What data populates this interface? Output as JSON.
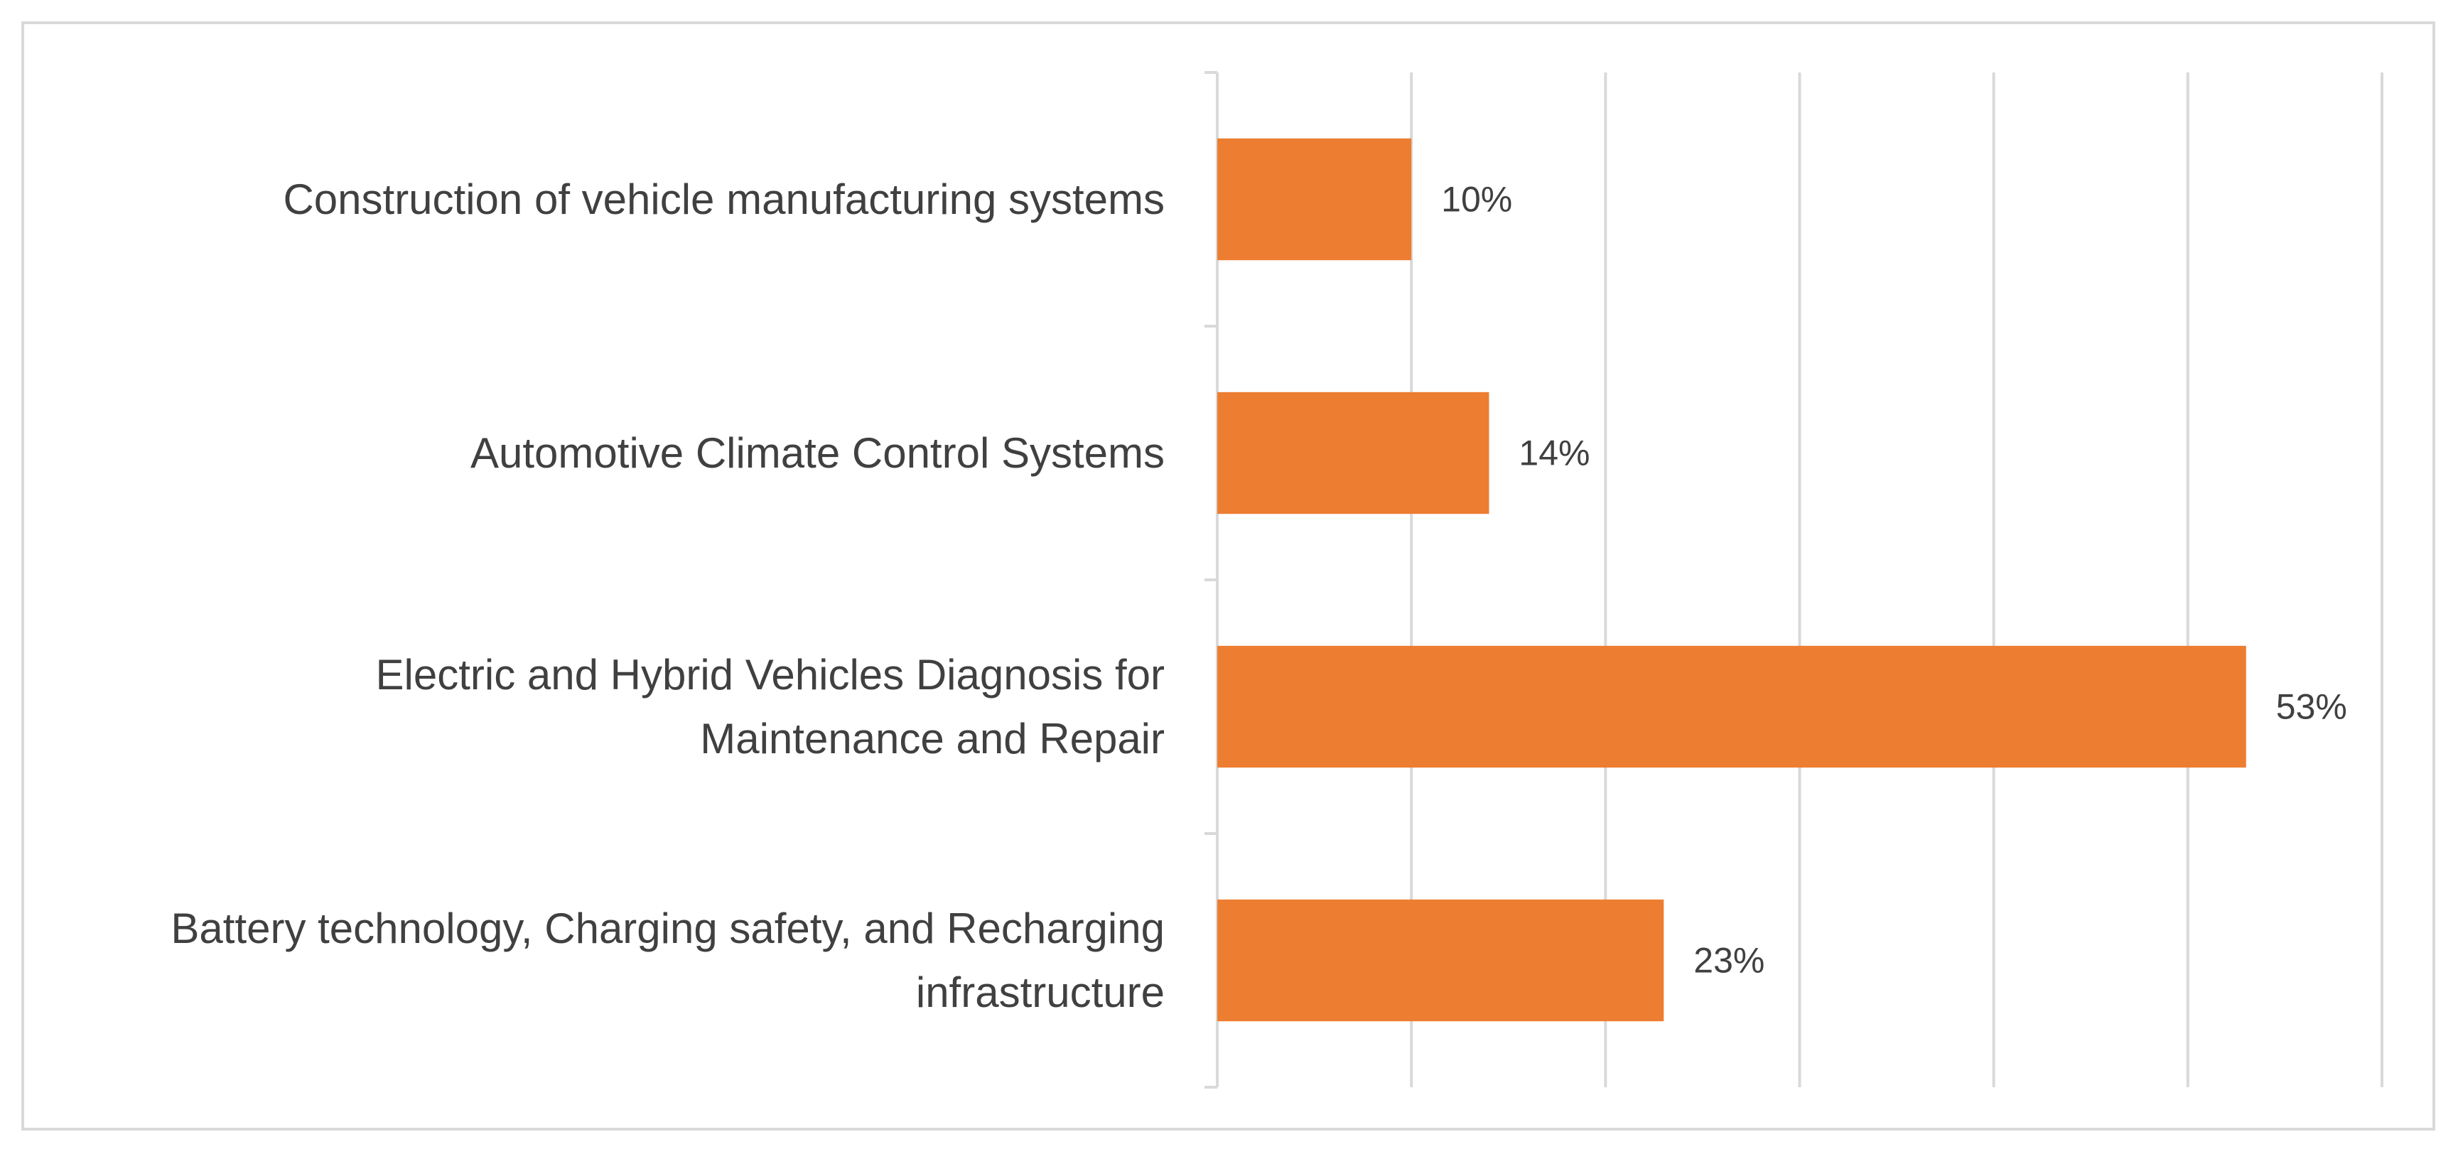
{
  "chart_data": {
    "type": "bar",
    "orientation": "horizontal",
    "title": "",
    "xlabel": "",
    "ylabel": "",
    "categories": [
      "Construction of vehicle manufacturing systems",
      "Automotive Climate Control Systems",
      "Electric and Hybrid Vehicles Diagnosis for Maintenance and Repair",
      "Battery technology, Charging safety, and Recharging infrastructure"
    ],
    "category_lines": [
      [
        "Construction of vehicle manufacturing systems"
      ],
      [
        "Automotive Climate Control Systems"
      ],
      [
        "Electric and Hybrid Vehicles Diagnosis for",
        "Maintenance and Repair"
      ],
      [
        "Battery technology, Charging safety, and Recharging",
        "infrastructure"
      ]
    ],
    "values": [
      10,
      14,
      53,
      23
    ],
    "data_labels": [
      "10%",
      "14%",
      "53%",
      "23%"
    ],
    "xlim": [
      0,
      60
    ],
    "gridlines": true,
    "x_tick_labels_visible": false,
    "legend": "none",
    "bar_color": "#ED7D31",
    "grid_color": "#D9D9D9",
    "text_color": "#404040"
  }
}
